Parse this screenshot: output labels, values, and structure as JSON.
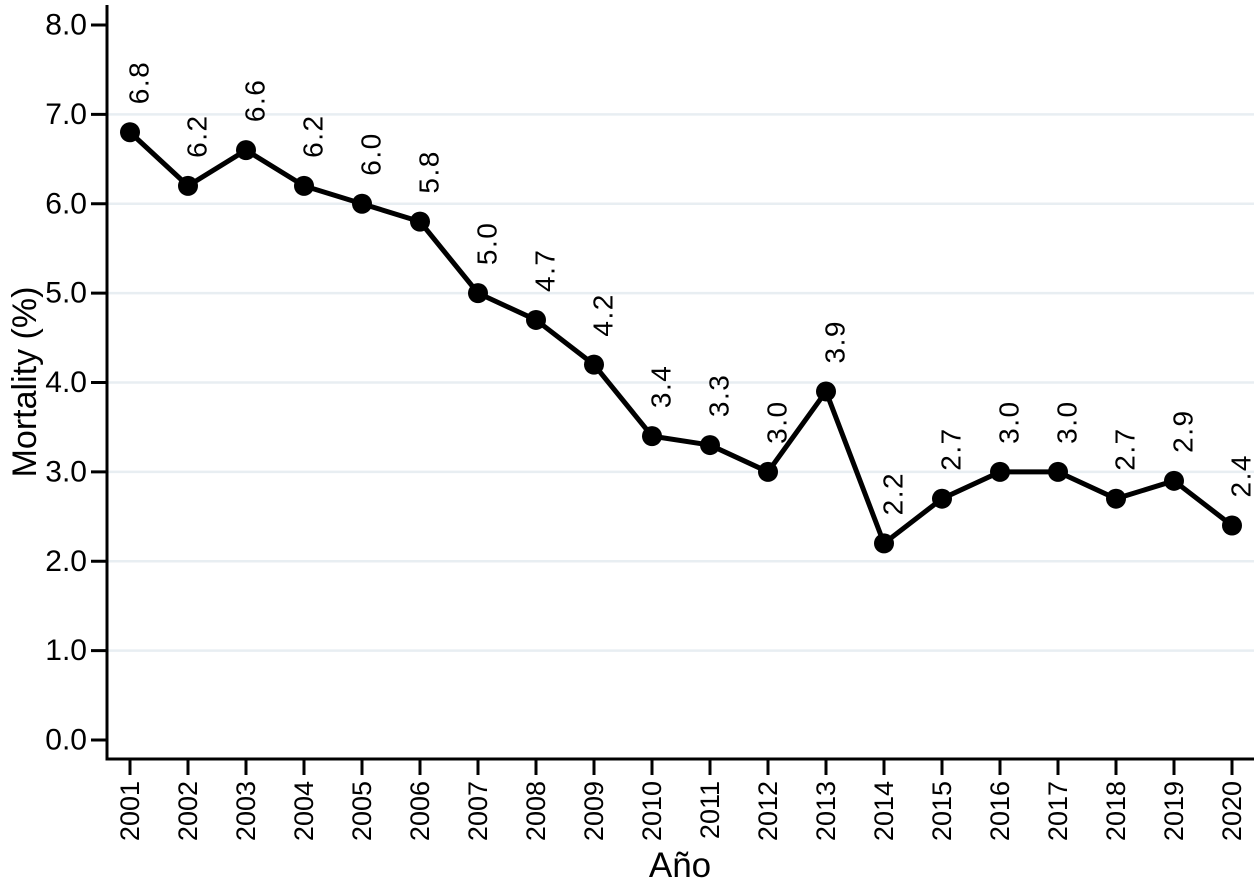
{
  "chart_data": {
    "type": "line",
    "title": "",
    "xlabel": "Año",
    "ylabel": "Mortality (%)",
    "categories": [
      "2001",
      "2002",
      "2003",
      "2004",
      "2005",
      "2006",
      "2007",
      "2008",
      "2009",
      "2010",
      "2011",
      "2012",
      "2013",
      "2014",
      "2015",
      "2016",
      "2017",
      "2018",
      "2019",
      "2020"
    ],
    "series": [
      {
        "name": "Mortality (%)",
        "values": [
          6.8,
          6.2,
          6.6,
          6.2,
          6.0,
          5.8,
          5.0,
          4.7,
          4.2,
          3.4,
          3.3,
          3.0,
          3.9,
          2.2,
          2.7,
          3.0,
          3.0,
          2.7,
          2.9,
          2.4
        ],
        "point_labels": [
          "6.8",
          "6.2",
          "6.6",
          "6.2",
          "6.0",
          "5.8",
          "5.0",
          "4.7",
          "4.2",
          "3.4",
          "3.3",
          "3.0",
          "3.9",
          "2.2",
          "2.7",
          "3.0",
          "3.0",
          "2.7",
          "2.9",
          "2.4"
        ]
      }
    ],
    "y_ticks": [
      "0.0",
      "1.0",
      "2.0",
      "3.0",
      "4.0",
      "5.0",
      "6.0",
      "7.0",
      "8.0"
    ],
    "y_tick_values": [
      0,
      1,
      2,
      3,
      4,
      5,
      6,
      7,
      8
    ],
    "gridline_values": [
      1,
      2,
      3,
      4,
      5,
      6,
      7
    ],
    "ylim": [
      0,
      8
    ],
    "grid": "horizontal",
    "legend_position": "none",
    "tick_label_rotation": -90,
    "point_label_rotation": -90,
    "colors": {
      "line": "#000000",
      "marker": "#000000",
      "axis": "#000000",
      "grid": "#e8eef2",
      "text": "#000000",
      "background": "#ffffff"
    }
  }
}
